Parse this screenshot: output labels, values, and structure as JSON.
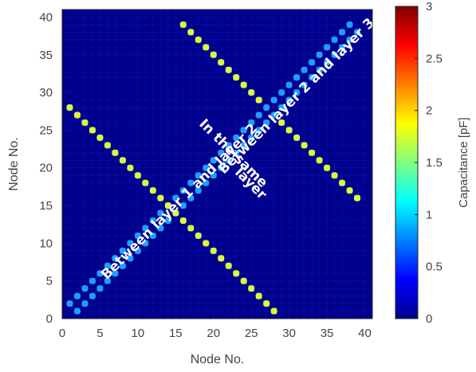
{
  "chart_data": {
    "type": "heatmap",
    "title": "",
    "xlabel": "Node No.",
    "ylabel": "Node No.",
    "xlim": [
      0,
      41
    ],
    "ylim": [
      0,
      41
    ],
    "x_ticks": [
      0,
      5,
      10,
      15,
      20,
      25,
      30,
      35,
      40
    ],
    "y_ticks": [
      0,
      5,
      10,
      15,
      20,
      25,
      30,
      35,
      40
    ],
    "grid": false,
    "colorbar": {
      "label": "Capacitance [pF]",
      "range": [
        0,
        3
      ],
      "ticks": [
        0,
        0.5,
        1,
        1.5,
        2,
        2.5,
        3
      ],
      "colormap": "jet"
    },
    "background_value": 0,
    "series": [
      {
        "from": [
          1,
          2
        ],
        "to": [
          38,
          39
        ],
        "value": 0.8
      },
      {
        "from": [
          2,
          1
        ],
        "to": [
          39,
          38
        ],
        "value": 0.8
      },
      {
        "from": [
          1,
          28
        ],
        "to": [
          28,
          1
        ],
        "value": 1.8
      },
      {
        "from": [
          16,
          39
        ],
        "to": [
          26,
          29
        ],
        "value": 1.8
      },
      {
        "from": [
          29,
          26
        ],
        "to": [
          39,
          16
        ],
        "value": 1.8
      }
    ],
    "annotations": [
      {
        "text": "Between layer 1 and layer 2",
        "x": 15.5,
        "y": 15.5,
        "angle": -45
      },
      {
        "text": "In the same",
        "x": 22.6,
        "y": 21.9,
        "angle": 45
      },
      {
        "text": "layer",
        "x": 24.9,
        "y": 17.9,
        "angle": 45
      },
      {
        "text": "Between layer 2 and layer 3",
        "x": 31,
        "y": 29.5,
        "angle": -45
      }
    ]
  },
  "colors": {
    "background": "#00008f",
    "diag_cyan": "#1aa0ff",
    "anti_yellow": "#d8ff3a",
    "grid_line": "#1a1aa8"
  }
}
